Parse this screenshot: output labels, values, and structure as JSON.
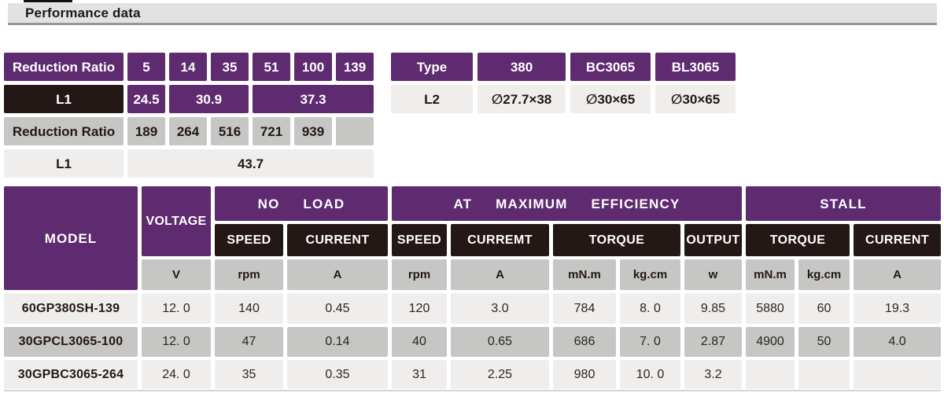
{
  "page": {
    "title": "Performance data"
  },
  "colors": {
    "purple": "#5f2b70",
    "black": "#231815",
    "gray": "#c6c6c4",
    "light": "#efeeec",
    "title_bg": "#e3e2e0"
  },
  "reduction_table": {
    "row1": {
      "label": "Reduction Ratio",
      "values": [
        "5",
        "14",
        "35",
        "51",
        "100",
        "139"
      ]
    },
    "row2": {
      "label": "L1",
      "values": [
        "24.5",
        "30.9",
        "37.3"
      ]
    },
    "row3": {
      "label": "Reduction Ratio",
      "values": [
        "189",
        "264",
        "516",
        "721",
        "939",
        ""
      ]
    },
    "row4": {
      "label": "L1",
      "value": "43.7"
    }
  },
  "type_table": {
    "header_label": "Type",
    "header_values": [
      "380",
      "BC3065",
      "BL3065"
    ],
    "row_label": "L2",
    "row_values": [
      "∅27.7×38",
      "∅30×65",
      "∅30×65"
    ]
  },
  "perf_table": {
    "model_header": "MODEL",
    "voltage_header": "VOLTAGE",
    "groups": [
      {
        "label": "NO  LOAD"
      },
      {
        "label": "AT  MAXIMUM  EFFICIENCY"
      },
      {
        "label": "STALL"
      }
    ],
    "subheaders": [
      "SPEED",
      "CURRENT",
      "SPEED",
      "CURREMT",
      "TORQUE",
      "OUTPUT",
      "TORQUE",
      "CURRENT"
    ],
    "units": [
      "V",
      "rpm",
      "A",
      "rpm",
      "A",
      "mN.m",
      "kg.cm",
      "w",
      "mN.m",
      "kg.cm",
      "A"
    ],
    "rows": [
      {
        "model": "60GP380SH-139",
        "values": [
          "12. 0",
          "140",
          "0.45",
          "120",
          "3.0",
          "784",
          "8. 0",
          "9.85",
          "5880",
          "60",
          "19.3"
        ]
      },
      {
        "model": "30GPCL3065-100",
        "values": [
          "12. 0",
          "47",
          "0.14",
          "40",
          "0.65",
          "686",
          "7. 0",
          "2.87",
          "4900",
          "50",
          "4.0"
        ]
      },
      {
        "model": "30GPBC3065-264",
        "values": [
          "24. 0",
          "35",
          "0.35",
          "31",
          "2.25",
          "980",
          "10. 0",
          "3.2",
          "",
          "",
          ""
        ]
      }
    ]
  }
}
